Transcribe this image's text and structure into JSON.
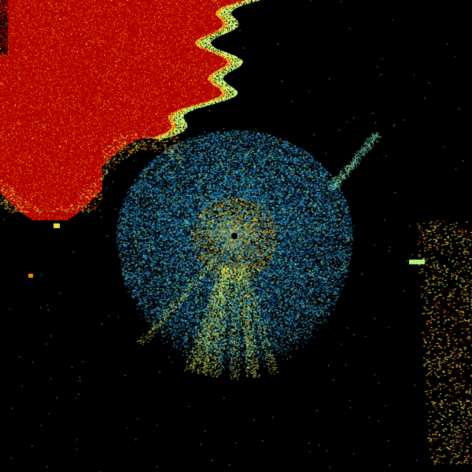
{
  "colors": {
    "background": "#000000",
    "heavy": "#b00000",
    "strong": "#d03000",
    "moderate": "#e89000",
    "light_yellow": "#f0e040",
    "light_green": "#b0f080",
    "cyan": "#40c0d0",
    "blue": "#2090d0",
    "deep_blue": "#1060b0"
  }
}
